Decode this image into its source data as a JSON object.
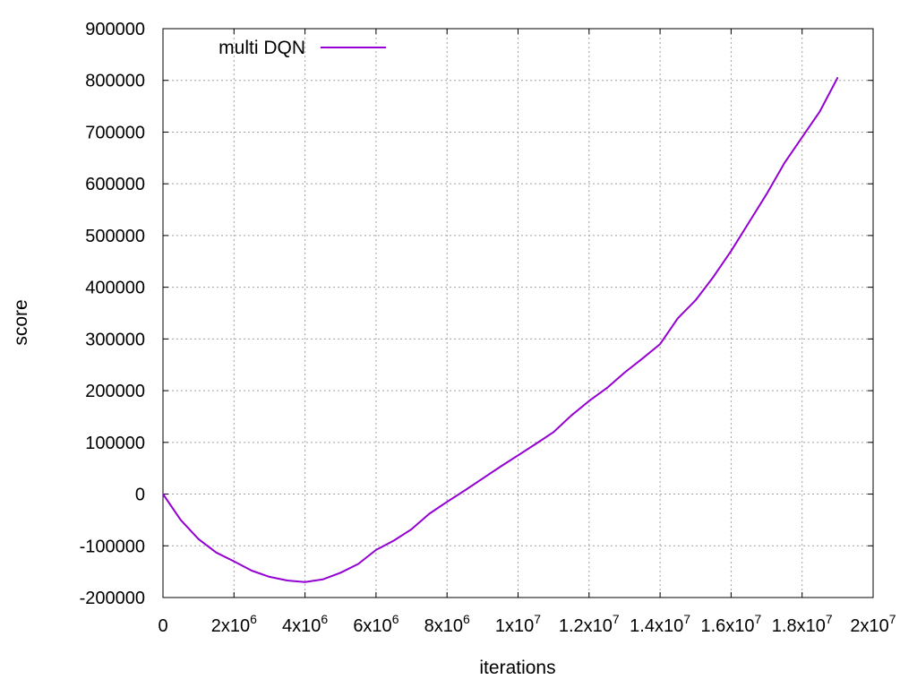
{
  "chart_data": {
    "type": "line",
    "title": "",
    "xlabel": "iterations",
    "ylabel": "score",
    "xlim": [
      0,
      20000000
    ],
    "ylim": [
      -200000,
      900000
    ],
    "grid": true,
    "legend_position": "top-left",
    "x_ticks": [
      {
        "value": 0,
        "mantissa": "0",
        "exp": ""
      },
      {
        "value": 2000000,
        "mantissa": "2x10",
        "exp": "6"
      },
      {
        "value": 4000000,
        "mantissa": "4x10",
        "exp": "6"
      },
      {
        "value": 6000000,
        "mantissa": "6x10",
        "exp": "6"
      },
      {
        "value": 8000000,
        "mantissa": "8x10",
        "exp": "6"
      },
      {
        "value": 10000000,
        "mantissa": "1x10",
        "exp": "7"
      },
      {
        "value": 12000000,
        "mantissa": "1.2x10",
        "exp": "7"
      },
      {
        "value": 14000000,
        "mantissa": "1.4x10",
        "exp": "7"
      },
      {
        "value": 16000000,
        "mantissa": "1.6x10",
        "exp": "7"
      },
      {
        "value": 18000000,
        "mantissa": "1.8x10",
        "exp": "7"
      },
      {
        "value": 20000000,
        "mantissa": "2x10",
        "exp": "7"
      }
    ],
    "y_ticks": [
      {
        "value": -200000,
        "label": "-200000"
      },
      {
        "value": -100000,
        "label": "-100000"
      },
      {
        "value": 0,
        "label": "0"
      },
      {
        "value": 100000,
        "label": "100000"
      },
      {
        "value": 200000,
        "label": "200000"
      },
      {
        "value": 300000,
        "label": "300000"
      },
      {
        "value": 400000,
        "label": "400000"
      },
      {
        "value": 500000,
        "label": "500000"
      },
      {
        "value": 600000,
        "label": "600000"
      },
      {
        "value": 700000,
        "label": "700000"
      },
      {
        "value": 800000,
        "label": "800000"
      },
      {
        "value": 900000,
        "label": "900000"
      }
    ],
    "series": [
      {
        "name": "multi DQN",
        "color": "#9400d3",
        "x": [
          0,
          500000,
          1000000,
          1500000,
          2000000,
          2500000,
          3000000,
          3500000,
          4000000,
          4500000,
          5000000,
          5500000,
          6000000,
          6500000,
          7000000,
          7500000,
          8000000,
          8500000,
          9000000,
          9500000,
          10000000,
          10500000,
          11000000,
          11500000,
          12000000,
          12500000,
          13000000,
          13500000,
          14000000,
          14500000,
          15000000,
          15500000,
          16000000,
          16500000,
          17000000,
          17500000,
          18000000,
          18500000,
          19000000
        ],
        "values": [
          0,
          -50000,
          -87000,
          -113000,
          -130000,
          -148000,
          -160000,
          -167000,
          -170000,
          -165000,
          -152000,
          -135000,
          -108000,
          -90000,
          -68000,
          -38000,
          -15000,
          7000,
          30000,
          53000,
          75000,
          97000,
          120000,
          152000,
          180000,
          205000,
          235000,
          262000,
          290000,
          340000,
          375000,
          420000,
          470000,
          525000,
          580000,
          640000,
          690000,
          740000,
          805000
        ]
      }
    ]
  }
}
